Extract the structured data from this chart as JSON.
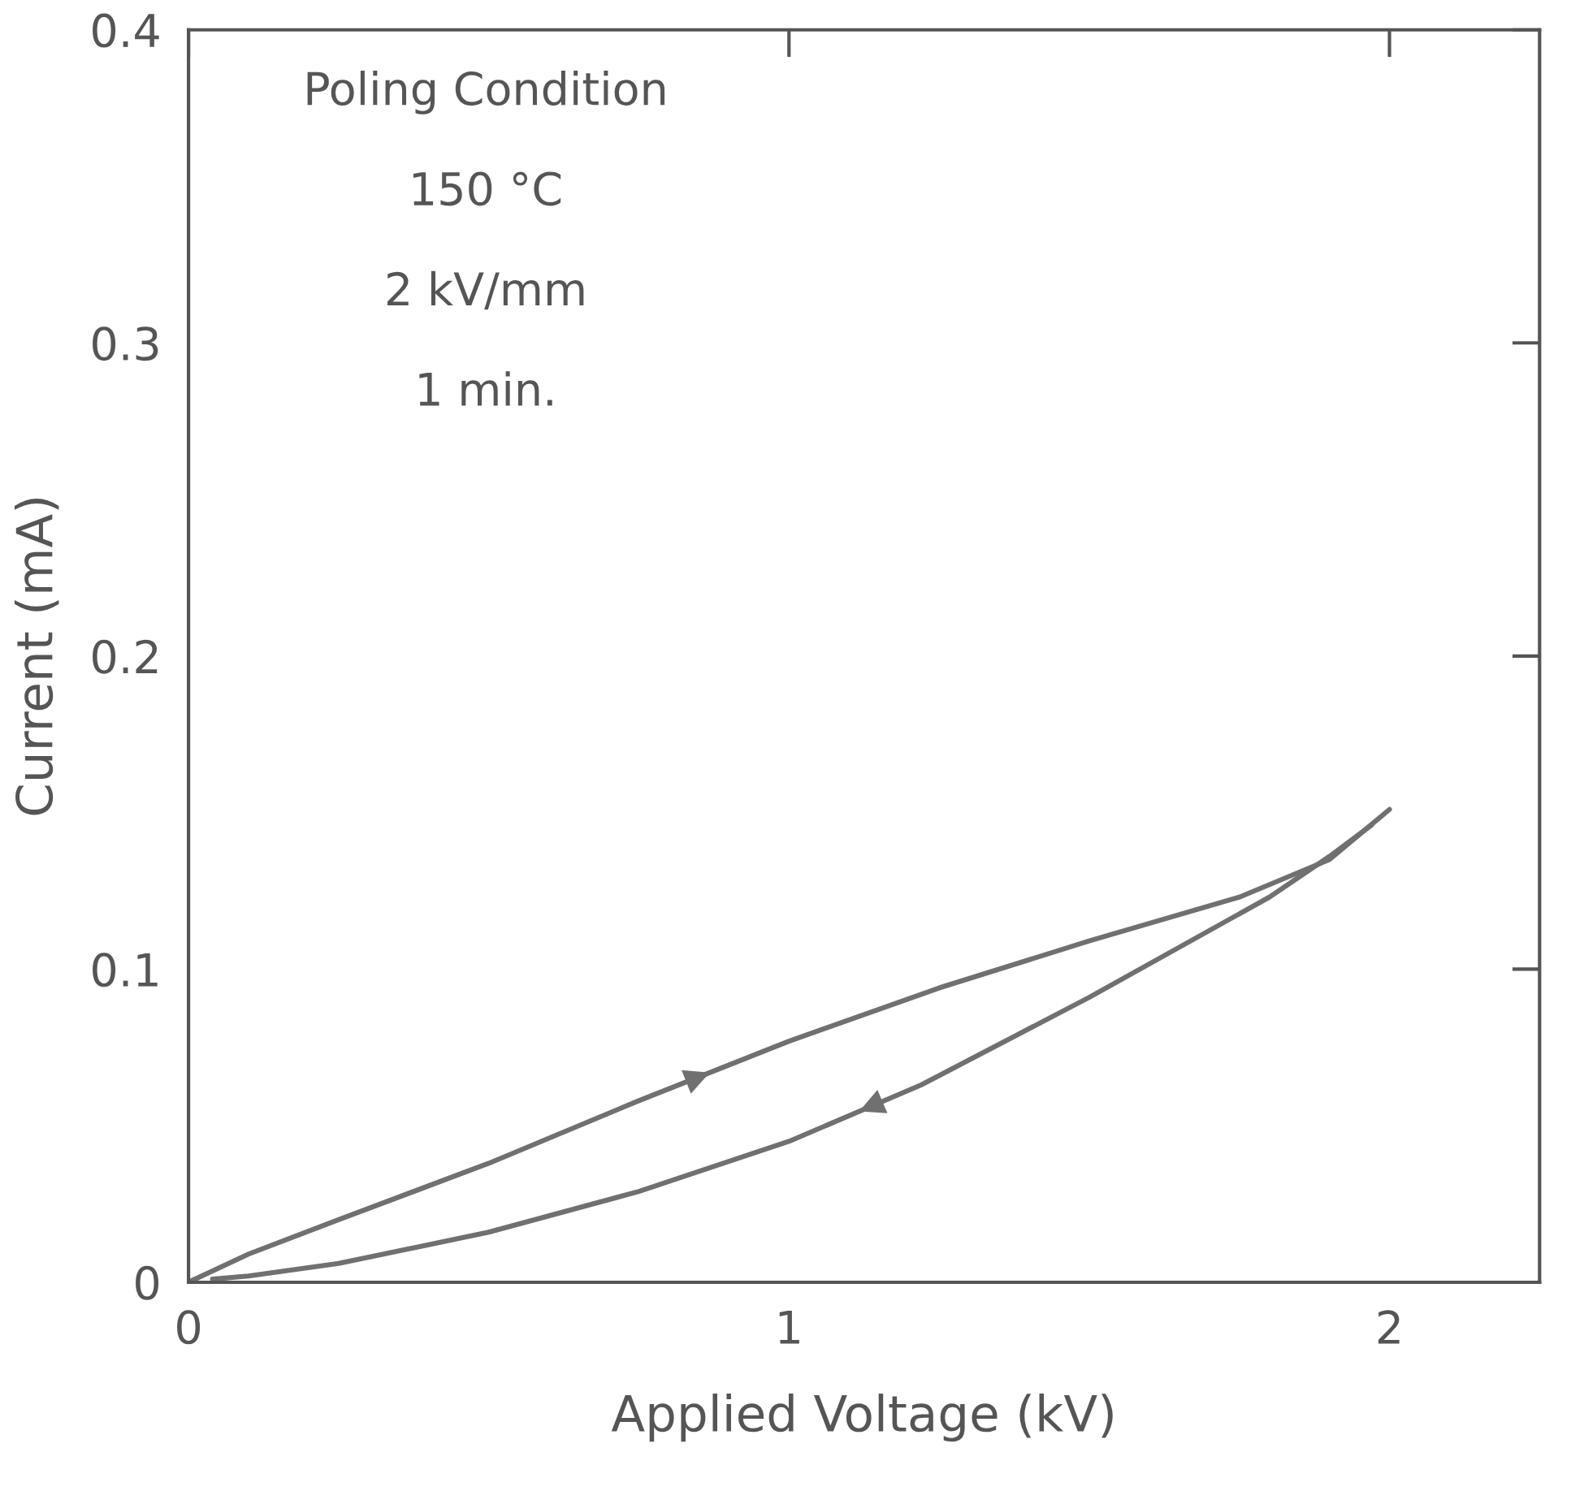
{
  "chart_data": {
    "type": "line",
    "xlabel": "Applied Voltage (kV)",
    "ylabel": "Current (mA)",
    "xlim": [
      0,
      2.25
    ],
    "ylim": [
      0,
      0.4
    ],
    "xticks": [
      0,
      1,
      2
    ],
    "yticks": [
      0,
      0.1,
      0.2,
      0.3,
      0.4
    ],
    "grid": false,
    "line_style": "solid",
    "annotations": [
      "Poling Condition",
      "150 °C",
      "2 kV/mm",
      "1 min."
    ],
    "series": [
      {
        "color": "#707070",
        "x": [
          0,
          0.1,
          0.25,
          0.5,
          0.75,
          1.0,
          1.25,
          1.5,
          1.75,
          1.9,
          2.0
        ],
        "values": [
          0,
          0.009,
          0.02,
          0.038,
          0.058,
          0.077,
          0.094,
          0.109,
          0.123,
          0.135,
          0.151
        ]
      },
      {
        "color": "#707070",
        "x": [
          1.97,
          1.9,
          1.8,
          1.5,
          1.22,
          1.0,
          0.75,
          0.5,
          0.25,
          0.1,
          0.04
        ],
        "values": [
          0.146,
          0.136,
          0.123,
          0.091,
          0.063,
          0.045,
          0.029,
          0.016,
          0.006,
          0.002,
          0.001
        ]
      }
    ]
  }
}
